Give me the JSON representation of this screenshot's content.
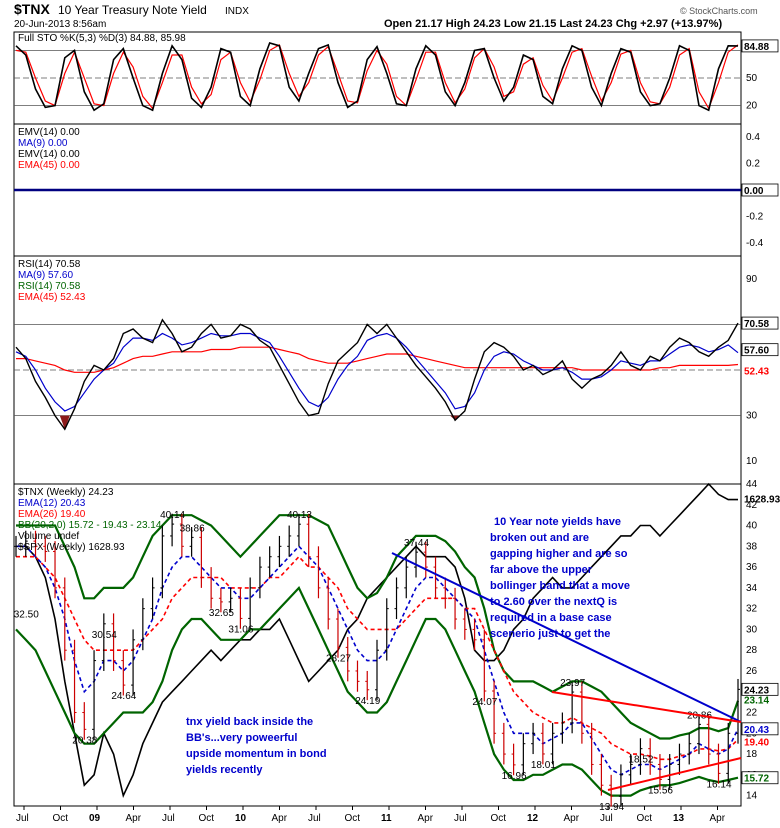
{
  "header": {
    "symbol": "$TNX",
    "name": "10 Year Treasury Note Yield",
    "exchange": "INDX",
    "date": "20-Jun-2013 8:56am",
    "quote": "Open 21.17   High 24.23   Low 21.15   Last 24.23   Chg +2.97 (+13.97%)",
    "watermark": "© StockCharts.com"
  },
  "colors": {
    "price": "#000000",
    "red": "#ff0000",
    "blue": "#0000cc",
    "green": "#006400",
    "navy": "#000080",
    "fill": "#8b1a1a"
  },
  "chart_data": [
    {
      "type": "line",
      "panel": "stochastic",
      "legend": [
        "Full STO %K(5,3) %D(3) 84.88, 85.98"
      ],
      "ylim": [
        0,
        100
      ],
      "y_ticks": [
        "50",
        "20"
      ],
      "reference_lines": [
        80,
        50,
        20
      ],
      "right_labels": [
        "84.88"
      ],
      "series": [
        {
          "name": "%K",
          "color": "#000000",
          "values": [
            85,
            75,
            38,
            18,
            20,
            72,
            80,
            35,
            15,
            22,
            70,
            82,
            50,
            20,
            15,
            55,
            85,
            70,
            28,
            18,
            40,
            82,
            78,
            30,
            20,
            60,
            88,
            85,
            40,
            25,
            55,
            82,
            86,
            45,
            18,
            25,
            70,
            84,
            55,
            22,
            20,
            60,
            85,
            75,
            35,
            20,
            45,
            80,
            82,
            50,
            25,
            40,
            75,
            70,
            30,
            22,
            60,
            85,
            80,
            40,
            20,
            55,
            82,
            78,
            35,
            20,
            22,
            50,
            85,
            80,
            20,
            15,
            60,
            85,
            84.88
          ]
        },
        {
          "name": "%D",
          "color": "#ff0000",
          "values": [
            80,
            78,
            50,
            25,
            20,
            55,
            78,
            50,
            22,
            20,
            55,
            78,
            62,
            30,
            17,
            45,
            75,
            75,
            40,
            22,
            32,
            70,
            78,
            45,
            24,
            48,
            80,
            86,
            55,
            30,
            45,
            75,
            84,
            55,
            25,
            23,
            58,
            80,
            65,
            30,
            20,
            48,
            78,
            78,
            45,
            23,
            38,
            72,
            82,
            62,
            30,
            35,
            65,
            72,
            42,
            25,
            50,
            78,
            82,
            52,
            25,
            45,
            76,
            80,
            45,
            24,
            22,
            40,
            75,
            82,
            35,
            17,
            45,
            78,
            85.98
          ]
        }
      ]
    },
    {
      "type": "line",
      "panel": "emv",
      "legend": [
        "EMV(14) 0.00",
        "MA(9) 0.00",
        "EMV(14) 0.00",
        "EMA(45) 0.00"
      ],
      "ylim": [
        -0.5,
        0.5
      ],
      "y_ticks": [
        "0.4",
        "0.2",
        "0.00",
        "-0.2",
        "-0.4"
      ],
      "value": 0.0,
      "right_labels": [
        "0.00"
      ]
    },
    {
      "type": "line",
      "panel": "rsi",
      "legend": [
        "RSI(14) 70.58",
        "MA(9) 57.60",
        "RSI(14) 70.58",
        "EMA(45) 52.43"
      ],
      "ylim": [
        0,
        100
      ],
      "y_ticks": [
        "90",
        "30",
        "10"
      ],
      "reference_lines": [
        70,
        50,
        30
      ],
      "right_labels": [
        "70.58",
        "57.60",
        "52.43"
      ],
      "series": [
        {
          "name": "RSI(14)",
          "color": "#000000",
          "values": [
            60,
            55,
            45,
            38,
            30,
            24,
            33,
            45,
            52,
            50,
            55,
            66,
            68,
            64,
            62,
            72,
            66,
            58,
            60,
            66,
            70,
            64,
            65,
            70,
            68,
            63,
            60,
            52,
            44,
            36,
            30,
            31,
            44,
            54,
            58,
            62,
            70,
            66,
            70,
            64,
            58,
            52,
            47,
            42,
            36,
            28,
            32,
            46,
            58,
            62,
            60,
            56,
            50,
            52,
            48,
            50,
            54,
            46,
            42,
            46,
            48,
            52,
            58,
            52,
            50,
            56,
            54,
            60,
            64,
            62,
            58,
            56,
            60,
            63,
            70.58
          ]
        },
        {
          "name": "MA(9)",
          "color": "#0000cc",
          "values": [
            58,
            56,
            50,
            42,
            36,
            32,
            34,
            40,
            46,
            50,
            53,
            60,
            64,
            64,
            63,
            66,
            64,
            61,
            62,
            64,
            66,
            65,
            65,
            66,
            66,
            64,
            62,
            56,
            49,
            42,
            36,
            34,
            38,
            46,
            52,
            56,
            63,
            65,
            66,
            64,
            60,
            55,
            50,
            45,
            40,
            33,
            34,
            40,
            50,
            56,
            58,
            57,
            54,
            52,
            50,
            50,
            51,
            49,
            46,
            46,
            47,
            50,
            54,
            53,
            52,
            54,
            54,
            57,
            60,
            61,
            60,
            58,
            59,
            61,
            57.6
          ]
        },
        {
          "name": "EMA(45)",
          "color": "#ff0000",
          "values": [
            55,
            55,
            54,
            53,
            52,
            50,
            49,
            49,
            49,
            50,
            51,
            53,
            55,
            56,
            56,
            57,
            58,
            58,
            58,
            58,
            59,
            59,
            59,
            60,
            60,
            60,
            60,
            59,
            58,
            57,
            55,
            54,
            53,
            53,
            53,
            54,
            55,
            56,
            57,
            57,
            57,
            56,
            55,
            54,
            53,
            52,
            51,
            51,
            51,
            51,
            51,
            51,
            51,
            51,
            51,
            51,
            51,
            51,
            50,
            50,
            50,
            50,
            50,
            50,
            50,
            50,
            51,
            51,
            52,
            52,
            52,
            52,
            52,
            52,
            52.43
          ]
        }
      ]
    },
    {
      "type": "line",
      "panel": "price",
      "legend": [
        "$TNX (Weekly) 24.23",
        "EMA(12) 20.43",
        "EMA(26) 19.40",
        "BB(20,2.0) 15.72 - 19.43 - 23.14",
        "Volume undef",
        "$SPX (Weekly) 1628.93"
      ],
      "ylim": [
        13,
        44
      ],
      "y_ticks": [
        "44",
        "42",
        "40",
        "38",
        "36",
        "34",
        "32",
        "30",
        "28",
        "26",
        "24",
        "22",
        "20",
        "18",
        "16",
        "14"
      ],
      "x_ticks": [
        "Jul",
        "Oct",
        "09",
        "Apr",
        "Jul",
        "Oct",
        "10",
        "Apr",
        "Jul",
        "Oct",
        "11",
        "Apr",
        "Jul",
        "Oct",
        "12",
        "Apr",
        "Jul",
        "Oct",
        "13",
        "Apr"
      ],
      "right_labels": [
        "1628.93",
        "24.23",
        "23.14",
        "20.43",
        "19.40",
        "15.72"
      ],
      "price_labels": [
        "32.50",
        "20.38",
        "30.54",
        "24.64",
        "40.14",
        "38.86",
        "32.65",
        "31.06",
        "40.13",
        "28.27",
        "24.19",
        "37.44",
        "24.07",
        "16.96",
        "18.01",
        "23.97",
        "13.94",
        "18.52",
        "15.56",
        "20.86",
        "16.14"
      ],
      "series": [
        {
          "name": "$TNX (Weekly)",
          "color": "#000000",
          "values": [
            38,
            38.5,
            38,
            37.5,
            34,
            28,
            22,
            20.38,
            27,
            30.54,
            27,
            24.64,
            29,
            32,
            34,
            39,
            40.14,
            38,
            38.86,
            35,
            33,
            32.65,
            33,
            31.06,
            34,
            36,
            37,
            38,
            39,
            40.13,
            37,
            34,
            31,
            28.27,
            26,
            25,
            24.19,
            28,
            32,
            34,
            36,
            37.44,
            36,
            34,
            33,
            31,
            30,
            29,
            24.07,
            20,
            18,
            16.96,
            19,
            20,
            18.01,
            20,
            21,
            23.97,
            20,
            17,
            15,
            13.94,
            16,
            17,
            18.52,
            17,
            15.56,
            17,
            18,
            19,
            20.86,
            18,
            16.14,
            20,
            24.23
          ]
        },
        {
          "name": "EMA(12)",
          "color": "#0000cc",
          "values": [
            38,
            38,
            37,
            36,
            34,
            31,
            27,
            24,
            25,
            27,
            27,
            26,
            27,
            29,
            31,
            34,
            36,
            37,
            37,
            36,
            35,
            34,
            34,
            33,
            33,
            34,
            35,
            36,
            37,
            38,
            37,
            36,
            34,
            32,
            30,
            28,
            27,
            27,
            28,
            30,
            32,
            34,
            35,
            35,
            34,
            33,
            32,
            31,
            28,
            25,
            22,
            20,
            20,
            20,
            19,
            19.5,
            20,
            21,
            21,
            19.5,
            18,
            16.5,
            16,
            16.5,
            17,
            17,
            16.5,
            17,
            17.5,
            18,
            19,
            18.5,
            18,
            18.5,
            20.43
          ]
        },
        {
          "name": "EMA(26)",
          "color": "#ff0000",
          "values": [
            37,
            37,
            37,
            36,
            35,
            33,
            31,
            29,
            28,
            28,
            28,
            28,
            28,
            29,
            30,
            31,
            33,
            34,
            35,
            35,
            35,
            35,
            34,
            34,
            34,
            34,
            35,
            35,
            36,
            37,
            36,
            36,
            35,
            34,
            32,
            31,
            30,
            30,
            30,
            30,
            31,
            32,
            33,
            33,
            33,
            33,
            32,
            32,
            30,
            28,
            26,
            24,
            23,
            22,
            21.5,
            21,
            21,
            21.5,
            21,
            20.5,
            20,
            19,
            18.5,
            18,
            18,
            17.8,
            17.5,
            17.5,
            17.8,
            18,
            18.5,
            18.5,
            18.3,
            18.5,
            19.4
          ]
        },
        {
          "name": "BB upper",
          "color": "#006400",
          "values": [
            40,
            40,
            40,
            40,
            40,
            38,
            36,
            33,
            33,
            34,
            34,
            34,
            35,
            37,
            39,
            40,
            41,
            41,
            41,
            40.5,
            40,
            39,
            38,
            37,
            38,
            39,
            40,
            41,
            41,
            41,
            41,
            40.5,
            40,
            38,
            36,
            34,
            33,
            33.5,
            35,
            37,
            38,
            39,
            39,
            39,
            38.5,
            37.5,
            36,
            35,
            32,
            28,
            26,
            25,
            25,
            25,
            24.5,
            24,
            24.5,
            25,
            25,
            24.5,
            24,
            23,
            22,
            21,
            20.5,
            20,
            19.5,
            19.5,
            19.8,
            20,
            20.5,
            20.5,
            20.2,
            20.5,
            23.14
          ]
        },
        {
          "name": "BB lower",
          "color": "#006400",
          "values": [
            30,
            29,
            28,
            26,
            24,
            22,
            20,
            19,
            19,
            20,
            21,
            22,
            22,
            22,
            23,
            25,
            28,
            30,
            31,
            31,
            30,
            29,
            29,
            29,
            30,
            30,
            31,
            32,
            33,
            34,
            32,
            30,
            28,
            26,
            24,
            23,
            22,
            22,
            23,
            25,
            27,
            29,
            31,
            31,
            30,
            28,
            26,
            24,
            21,
            18,
            16.5,
            15.5,
            15.5,
            16,
            16,
            16.5,
            17,
            17,
            16.5,
            15.5,
            14.5,
            14,
            14,
            14,
            14.5,
            14.8,
            15,
            15,
            15.2,
            15.5,
            15.8,
            15.5,
            15.3,
            15.5,
            15.72
          ]
        },
        {
          "name": "$SPX (Weekly)",
          "color": "#000000",
          "values": [
            38,
            38,
            37,
            35,
            31,
            25,
            20,
            15,
            16,
            20,
            18,
            14,
            16,
            19,
            21,
            23,
            24,
            25,
            26,
            27,
            28,
            27,
            28,
            29,
            29,
            30,
            30,
            31,
            29,
            27,
            25,
            26,
            27,
            28,
            30,
            31,
            33,
            34,
            35,
            36,
            37,
            38,
            37,
            37,
            37,
            36,
            33,
            28,
            27,
            27,
            28,
            30,
            31,
            33,
            34,
            35,
            34,
            34,
            35,
            36,
            37,
            38,
            39,
            39,
            40,
            40,
            39,
            40,
            41,
            42,
            43,
            44,
            43,
            42.5,
            42.5
          ]
        }
      ]
    }
  ],
  "annotations": {
    "note_right": [
      "10 Year note yields have",
      "broken out and are",
      "gapping higher and are so",
      "far above the upper",
      "bollinger band that a move",
      "to 2.60 over the nextQ is",
      "required in a base case",
      "scenerio just to get the"
    ],
    "note_left": [
      "tnx yield back inside the",
      "BB's...very poweerful",
      "upside momentum in bond",
      "yields recently"
    ]
  }
}
